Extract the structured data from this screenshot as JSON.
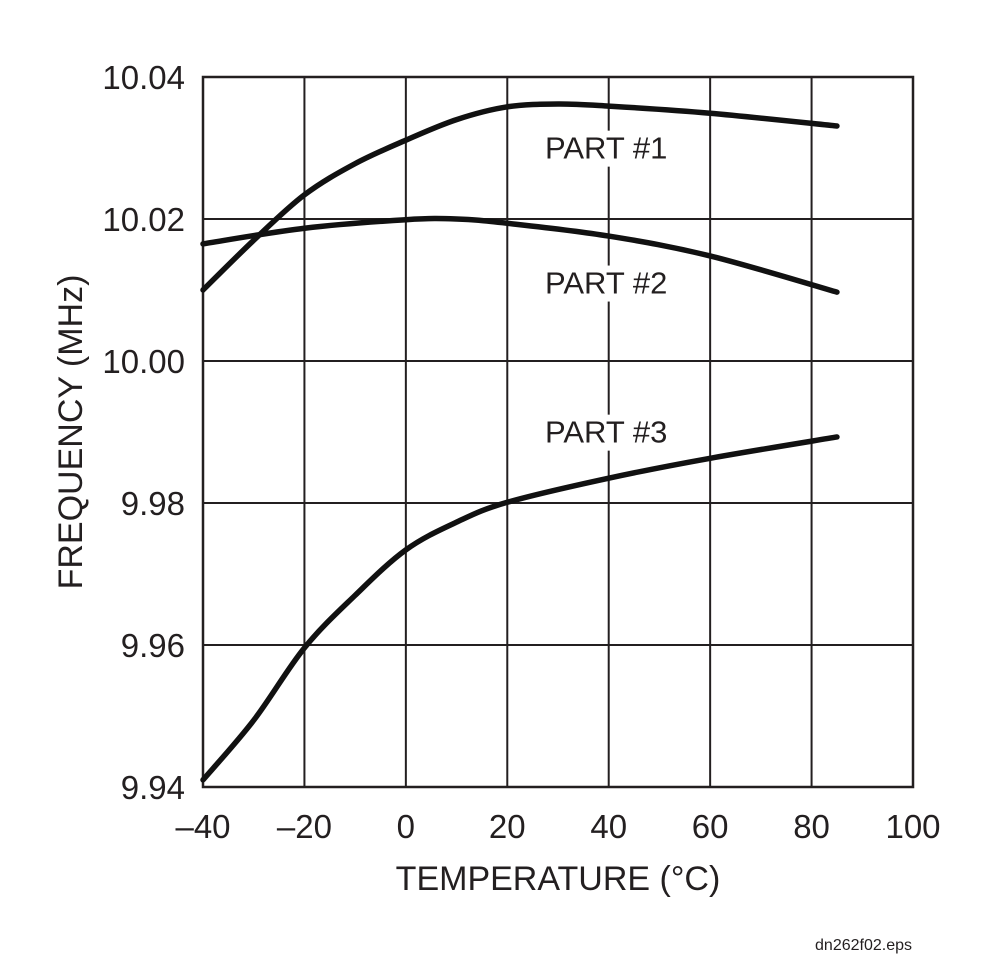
{
  "chart_data": {
    "type": "line",
    "title": "",
    "xlabel": "TEMPERATURE (°C)",
    "ylabel": "FREQUENCY (MHz)",
    "xlim": [
      -40,
      100
    ],
    "ylim": [
      9.94,
      10.04
    ],
    "xticks": [
      -40,
      -20,
      0,
      20,
      40,
      60,
      80,
      100
    ],
    "xtick_labels": [
      "–40",
      "–20",
      "0",
      "20",
      "40",
      "60",
      "80",
      "100"
    ],
    "yticks": [
      9.94,
      9.96,
      9.98,
      10.0,
      10.02,
      10.04
    ],
    "ytick_labels": [
      "9.94",
      "9.96",
      "9.98",
      "10.00",
      "10.02",
      "10.04"
    ],
    "grid": true,
    "series": [
      {
        "name": "PART #1",
        "x": [
          -40,
          -30,
          -20,
          -10,
          0,
          10,
          20,
          30,
          40,
          60,
          85
        ],
        "y": [
          10.01,
          10.017,
          10.0234,
          10.0278,
          10.0311,
          10.034,
          10.0358,
          10.0362,
          10.0359,
          10.0349,
          10.0331
        ]
      },
      {
        "name": "PART #2",
        "x": [
          -40,
          -20,
          0,
          10,
          20,
          40,
          60,
          85
        ],
        "y": [
          10.0165,
          10.0187,
          10.0199,
          10.02,
          10.0194,
          10.0176,
          10.0148,
          10.0097
        ]
      },
      {
        "name": "PART #3",
        "x": [
          -40,
          -30,
          -20,
          -10,
          0,
          10,
          20,
          40,
          60,
          85
        ],
        "y": [
          9.941,
          9.9494,
          9.9596,
          9.967,
          9.9734,
          9.9773,
          9.9801,
          9.9835,
          9.9863,
          9.9893
        ]
      }
    ],
    "annotations": [
      "PART #1",
      "PART #2",
      "PART #3"
    ]
  },
  "footer": "dn262f02.eps"
}
